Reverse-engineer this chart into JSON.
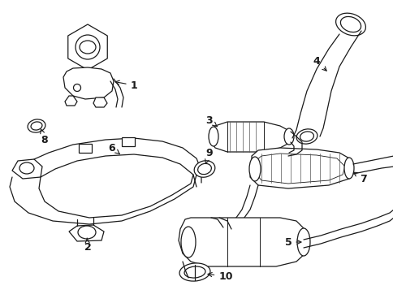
{
  "background_color": "#ffffff",
  "line_color": "#1a1a1a",
  "line_width": 0.9,
  "fig_width": 4.85,
  "fig_height": 3.57,
  "dpi": 100
}
